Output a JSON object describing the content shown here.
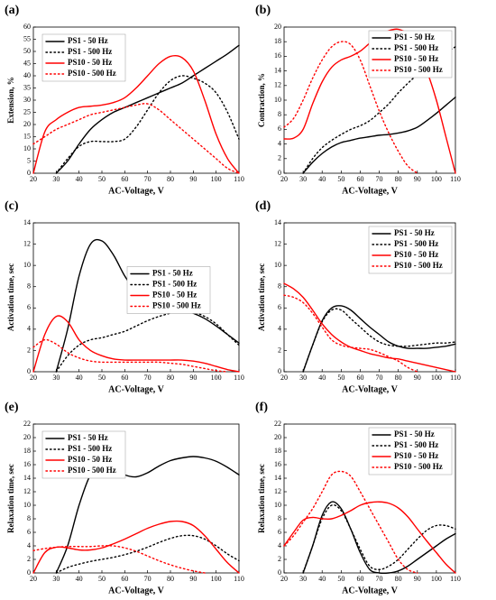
{
  "chart_data": [
    {
      "type": "line",
      "panel_label": "(a)",
      "x_label": "AC-Voltage, V",
      "y_label": "Extension, %",
      "legend": "upper left",
      "xlim": [
        20,
        110
      ],
      "xticks": [
        20,
        30,
        40,
        50,
        60,
        70,
        80,
        90,
        100,
        110
      ],
      "ylim": [
        0,
        60
      ],
      "yticks": [
        0,
        5,
        10,
        15,
        20,
        25,
        30,
        35,
        40,
        45,
        50,
        55,
        60
      ],
      "x": [
        20,
        25,
        30,
        35,
        40,
        45,
        50,
        55,
        60,
        65,
        70,
        75,
        80,
        85,
        90,
        95,
        100,
        105,
        110
      ],
      "series": [
        {
          "name": "PS1 - 50 Hz",
          "color": "#000000",
          "dash": "solid",
          "values": [
            null,
            null,
            0,
            5,
            12,
            18,
            22,
            25,
            27,
            29,
            31,
            33,
            35,
            37,
            40,
            43,
            46,
            49,
            52.5
          ]
        },
        {
          "name": "PS1 - 500 Hz",
          "color": "#000000",
          "dash": "dotted",
          "values": [
            null,
            null,
            0,
            6,
            11,
            13,
            13,
            13,
            14,
            19,
            26,
            33,
            38,
            40,
            39,
            37,
            33,
            25,
            14
          ]
        },
        {
          "name": "PS10 - 50 Hz",
          "color": "#ff0000",
          "dash": "solid",
          "values": [
            0,
            17,
            22,
            25,
            27,
            27.5,
            28,
            29,
            31,
            35,
            40,
            45,
            48,
            47.5,
            42,
            30,
            16,
            6,
            0
          ]
        },
        {
          "name": "PS10 - 500 Hz",
          "color": "#ff0000",
          "dash": "dotted",
          "values": [
            12,
            15,
            18,
            20,
            22,
            24,
            25,
            26,
            27,
            28,
            28.5,
            26,
            22,
            18,
            14,
            10,
            6,
            2,
            0
          ]
        }
      ]
    },
    {
      "type": "line",
      "panel_label": "(b)",
      "x_label": "AC-Voltage, V",
      "y_label": "Contraction, %",
      "legend": "upper right",
      "xlim": [
        20,
        110
      ],
      "xticks": [
        20,
        30,
        40,
        50,
        60,
        70,
        80,
        90,
        100,
        110
      ],
      "ylim": [
        0,
        20
      ],
      "yticks": [
        0,
        2,
        4,
        6,
        8,
        10,
        12,
        14,
        16,
        18,
        20
      ],
      "x": [
        20,
        25,
        30,
        35,
        40,
        45,
        50,
        55,
        60,
        65,
        70,
        75,
        80,
        85,
        90,
        95,
        100,
        105,
        110
      ],
      "series": [
        {
          "name": "PS1 - 50 Hz",
          "color": "#000000",
          "dash": "solid",
          "values": [
            null,
            null,
            0,
            1.5,
            2.7,
            3.6,
            4.2,
            4.5,
            4.8,
            5,
            5.2,
            5.3,
            5.5,
            5.8,
            6.3,
            7.2,
            8.2,
            9.3,
            10.4
          ]
        },
        {
          "name": "PS1 - 500 Hz",
          "color": "#000000",
          "dash": "dotted",
          "values": [
            null,
            null,
            0,
            2,
            3.5,
            4.5,
            5.3,
            6,
            6.5,
            7.2,
            8.3,
            9.5,
            11,
            12.3,
            13.5,
            14.6,
            15.6,
            16.5,
            17.3
          ]
        },
        {
          "name": "PS10 - 50 Hz",
          "color": "#ff0000",
          "dash": "solid",
          "values": [
            4.7,
            4.8,
            6,
            9.5,
            12.5,
            14.5,
            15.5,
            16,
            16.7,
            17.8,
            18.8,
            19.5,
            19.7,
            19,
            17,
            14,
            10,
            5,
            0
          ]
        },
        {
          "name": "PS10 - 500 Hz",
          "color": "#ff0000",
          "dash": "dotted",
          "values": [
            6.3,
            7.5,
            10,
            13,
            15.5,
            17.3,
            18,
            17.6,
            15.5,
            12,
            8.5,
            5.5,
            3,
            1,
            0,
            null,
            null,
            null,
            null
          ]
        }
      ]
    },
    {
      "type": "line",
      "panel_label": "(c)",
      "x_label": "AC-Voltage, V",
      "y_label": "Activation time, sec",
      "legend": "center right",
      "xlim": [
        20,
        110
      ],
      "xticks": [
        20,
        30,
        40,
        50,
        60,
        70,
        80,
        90,
        100,
        110
      ],
      "ylim": [
        0,
        14
      ],
      "yticks": [
        0,
        2,
        4,
        6,
        8,
        10,
        12,
        14
      ],
      "x": [
        20,
        25,
        30,
        35,
        40,
        45,
        50,
        55,
        60,
        65,
        70,
        75,
        80,
        85,
        90,
        95,
        100,
        105,
        110
      ],
      "series": [
        {
          "name": "PS1 - 50 Hz",
          "color": "#000000",
          "dash": "solid",
          "values": [
            null,
            null,
            0,
            4,
            9,
            12,
            12.3,
            11,
            9,
            7.5,
            6.7,
            6.2,
            6,
            5.8,
            5.5,
            5,
            4.3,
            3.5,
            2.7
          ]
        },
        {
          "name": "PS1 - 500 Hz",
          "color": "#000000",
          "dash": "dotted",
          "values": [
            null,
            null,
            0,
            1.5,
            2.5,
            3,
            3.2,
            3.5,
            3.8,
            4.3,
            4.8,
            5.2,
            5.5,
            5.7,
            5.6,
            5.2,
            4.5,
            3.5,
            2.5
          ]
        },
        {
          "name": "PS10 - 50 Hz",
          "color": "#ff0000",
          "dash": "solid",
          "values": [
            0,
            3.5,
            5.2,
            4.7,
            3,
            2,
            1.5,
            1.2,
            1.1,
            1.1,
            1.1,
            1.1,
            1.1,
            1.1,
            1,
            0.8,
            0.5,
            0.2,
            0
          ]
        },
        {
          "name": "PS10 - 500 Hz",
          "color": "#ff0000",
          "dash": "dotted",
          "values": [
            2.3,
            3,
            2.6,
            1.8,
            1.3,
            1,
            0.9,
            0.9,
            0.9,
            0.9,
            0.9,
            0.9,
            0.8,
            0.7,
            0.5,
            0.3,
            0.1,
            0,
            null
          ]
        }
      ]
    },
    {
      "type": "line",
      "panel_label": "(d)",
      "x_label": "AC-Voltage, V",
      "y_label": "Activation time, sec",
      "legend": "upper right",
      "xlim": [
        20,
        110
      ],
      "xticks": [
        20,
        30,
        40,
        50,
        60,
        70,
        80,
        90,
        100,
        110
      ],
      "ylim": [
        0,
        14
      ],
      "yticks": [
        0,
        2,
        4,
        6,
        8,
        10,
        12,
        14
      ],
      "x": [
        20,
        25,
        30,
        35,
        40,
        45,
        50,
        55,
        60,
        65,
        70,
        75,
        80,
        85,
        90,
        95,
        100,
        105,
        110
      ],
      "series": [
        {
          "name": "PS1 - 50 Hz",
          "color": "#000000",
          "dash": "solid",
          "values": [
            null,
            null,
            0,
            2.5,
            4.8,
            6,
            6.2,
            5.8,
            5,
            4.2,
            3.5,
            2.8,
            2.4,
            2.2,
            2.2,
            2.2,
            2.3,
            2.4,
            2.6
          ]
        },
        {
          "name": "PS1 - 500 Hz",
          "color": "#000000",
          "dash": "dotted",
          "values": [
            null,
            null,
            0,
            2.5,
            4.7,
            5.8,
            5.8,
            5,
            4.2,
            3.4,
            2.8,
            2.5,
            2.4,
            2.4,
            2.5,
            2.6,
            2.7,
            2.7,
            2.8
          ]
        },
        {
          "name": "PS10 - 50 Hz",
          "color": "#ff0000",
          "dash": "solid",
          "values": [
            8.3,
            7.8,
            7,
            5.8,
            4.5,
            3.5,
            2.8,
            2.3,
            2,
            1.7,
            1.5,
            1.3,
            1.2,
            1,
            0.8,
            0.6,
            0.4,
            0.2,
            0
          ]
        },
        {
          "name": "PS10 - 500 Hz",
          "color": "#ff0000",
          "dash": "dotted",
          "values": [
            7.2,
            7,
            6.5,
            5.5,
            4.2,
            3,
            2.5,
            2.3,
            2.2,
            2.1,
            1.8,
            1.4,
            1,
            0.4,
            0,
            null,
            null,
            null,
            null
          ]
        }
      ]
    },
    {
      "type": "line",
      "panel_label": "(e)",
      "x_label": "AC-Voltage, V",
      "y_label": "Relaxation time, sec",
      "legend": "upper left",
      "xlim": [
        20,
        110
      ],
      "xticks": [
        20,
        30,
        40,
        50,
        60,
        70,
        80,
        90,
        100,
        110
      ],
      "ylim": [
        0,
        22
      ],
      "yticks": [
        0,
        2,
        4,
        6,
        8,
        10,
        12,
        14,
        16,
        18,
        20,
        22
      ],
      "x": [
        20,
        25,
        30,
        35,
        40,
        45,
        50,
        55,
        60,
        65,
        70,
        75,
        80,
        85,
        90,
        95,
        100,
        105,
        110
      ],
      "series": [
        {
          "name": "PS1 - 50 Hz",
          "color": "#000000",
          "dash": "solid",
          "values": [
            null,
            null,
            0,
            4,
            10,
            14.5,
            15.8,
            15.5,
            14.5,
            14.2,
            14.8,
            15.8,
            16.6,
            17,
            17.2,
            17,
            16.5,
            15.6,
            14.5
          ]
        },
        {
          "name": "PS1 - 500 Hz",
          "color": "#000000",
          "dash": "dotted",
          "values": [
            null,
            null,
            0,
            0.8,
            1.3,
            1.7,
            2,
            2.3,
            2.7,
            3.2,
            3.8,
            4.5,
            5.1,
            5.5,
            5.5,
            5,
            4,
            2.8,
            1.8
          ]
        },
        {
          "name": "PS10 - 50 Hz",
          "color": "#ff0000",
          "dash": "solid",
          "values": [
            0,
            3,
            3.8,
            3.7,
            3.4,
            3.4,
            3.7,
            4.3,
            5,
            5.8,
            6.6,
            7.2,
            7.6,
            7.6,
            7,
            5.5,
            3.5,
            1.5,
            0
          ]
        },
        {
          "name": "PS10 - 500 Hz",
          "color": "#ff0000",
          "dash": "dotted",
          "values": [
            3.3,
            3.6,
            3.8,
            3.9,
            3.9,
            3.9,
            4,
            4,
            3.7,
            3.2,
            2.5,
            1.8,
            1.2,
            0.7,
            0.3,
            0,
            null,
            null,
            null
          ]
        }
      ]
    },
    {
      "type": "line",
      "panel_label": "(f)",
      "x_label": "AC-Voltage, V",
      "y_label": "Relaxation time, sec",
      "legend": "upper right",
      "xlim": [
        20,
        110
      ],
      "xticks": [
        20,
        30,
        40,
        50,
        60,
        70,
        80,
        90,
        100,
        110
      ],
      "ylim": [
        0,
        22
      ],
      "yticks": [
        0,
        2,
        4,
        6,
        8,
        10,
        12,
        14,
        16,
        18,
        20,
        22
      ],
      "x": [
        20,
        25,
        30,
        35,
        40,
        45,
        50,
        55,
        60,
        65,
        70,
        75,
        80,
        85,
        90,
        95,
        100,
        105,
        110
      ],
      "series": [
        {
          "name": "PS1 - 50 Hz",
          "color": "#000000",
          "dash": "solid",
          "values": [
            null,
            null,
            0,
            4,
            8.5,
            10.5,
            9.5,
            6.5,
            3,
            0.5,
            0,
            0,
            0.3,
            1,
            2,
            3,
            4,
            5,
            5.8
          ]
        },
        {
          "name": "PS1 - 500 Hz",
          "color": "#000000",
          "dash": "dotted",
          "values": [
            null,
            null,
            0,
            4,
            8,
            10,
            9.2,
            6.5,
            3.5,
            1,
            0.5,
            1,
            2,
            3.5,
            5,
            6.3,
            7,
            7,
            6.5
          ]
        },
        {
          "name": "PS10 - 50 Hz",
          "color": "#ff0000",
          "dash": "solid",
          "values": [
            4,
            6,
            7.8,
            8.2,
            8,
            8,
            8.5,
            9.2,
            10,
            10.4,
            10.5,
            10.3,
            9.6,
            8.3,
            6.5,
            4.7,
            3,
            1.3,
            0
          ]
        },
        {
          "name": "PS10 - 500 Hz",
          "color": "#ff0000",
          "dash": "dotted",
          "values": [
            4,
            5.5,
            7.5,
            9.5,
            12,
            14.5,
            15,
            14.3,
            12,
            9.5,
            7,
            4.5,
            2,
            0.5,
            0,
            null,
            null,
            null,
            null
          ]
        }
      ]
    }
  ]
}
